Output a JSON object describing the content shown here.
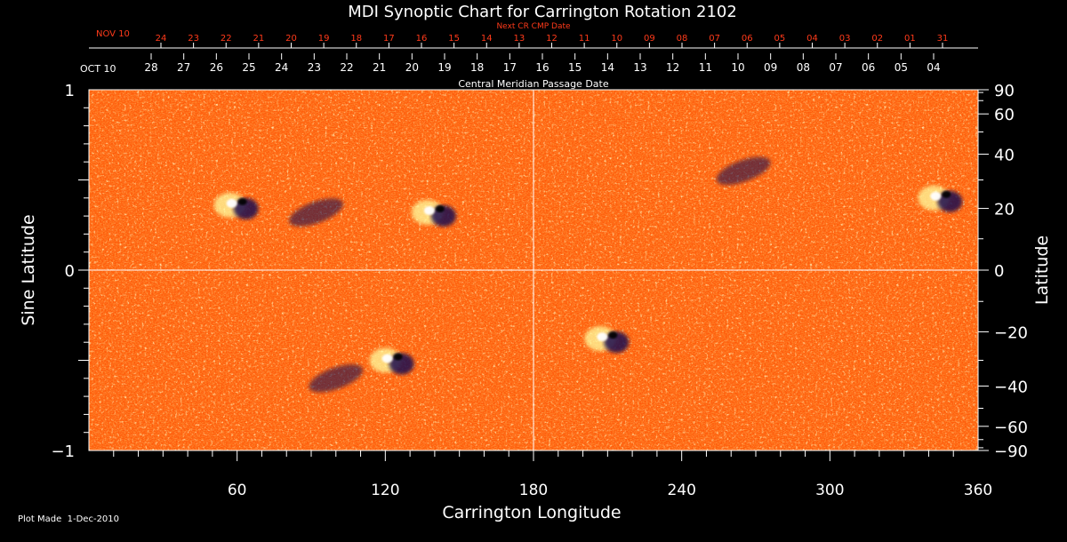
{
  "chart_data": {
    "type": "heatmap",
    "title": "MDI Synoptic Chart for Carrington Rotation 2102",
    "xlabel": "Carrington Longitude",
    "ylabel_left": "Sine Latitude",
    "ylabel_right": "Latitude",
    "xlim": [
      0,
      360
    ],
    "ylim": [
      -1,
      1
    ],
    "x_ticks": [
      "60",
      "120",
      "180",
      "240",
      "300",
      "360"
    ],
    "y_ticks_left": [
      "1",
      "0",
      "−1"
    ],
    "y_ticks_right": [
      "90",
      "60",
      "40",
      "20",
      "0",
      "−20",
      "−40",
      "−60",
      "−90"
    ],
    "top_axis_label": "Central Meridian Passage Date",
    "top_axis_start": "OCT 10",
    "top_axis_dates": [
      "28",
      "27",
      "26",
      "25",
      "24",
      "23",
      "22",
      "21",
      "20",
      "19",
      "18",
      "17",
      "16",
      "15",
      "14",
      "13",
      "12",
      "11",
      "10",
      "09",
      "08",
      "07",
      "06",
      "05",
      "04"
    ],
    "next_axis_label": "Next CR CMP Date",
    "next_axis_start": "NOV 10",
    "next_axis_dates": [
      "24",
      "23",
      "22",
      "21",
      "20",
      "19",
      "18",
      "17",
      "16",
      "15",
      "14",
      "13",
      "12",
      "11",
      "10",
      "09",
      "08",
      "07",
      "06",
      "05",
      "04",
      "03",
      "02",
      "01",
      "31"
    ],
    "active_regions": [
      {
        "lon": 60,
        "sinlat": 0.36,
        "polarity": "mixed"
      },
      {
        "lon": 92,
        "sinlat": 0.32,
        "polarity": "negative"
      },
      {
        "lon": 140,
        "sinlat": 0.32,
        "polarity": "mixed"
      },
      {
        "lon": 123,
        "sinlat": -0.5,
        "polarity": "mixed"
      },
      {
        "lon": 100,
        "sinlat": -0.6,
        "polarity": "negative"
      },
      {
        "lon": 210,
        "sinlat": -0.38,
        "polarity": "mixed"
      },
      {
        "lon": 345,
        "sinlat": 0.4,
        "polarity": "mixed"
      },
      {
        "lon": 265,
        "sinlat": 0.55,
        "polarity": "negative"
      }
    ],
    "colors": {
      "background": "#ff5a0a",
      "positive": "#ffffa0",
      "negative": "#1a1050",
      "grid": "#ffffff",
      "date_accent": "#ff3a1a"
    },
    "grid": true
  },
  "footer": {
    "plot_made": "Plot Made  1-Dec-2010"
  }
}
